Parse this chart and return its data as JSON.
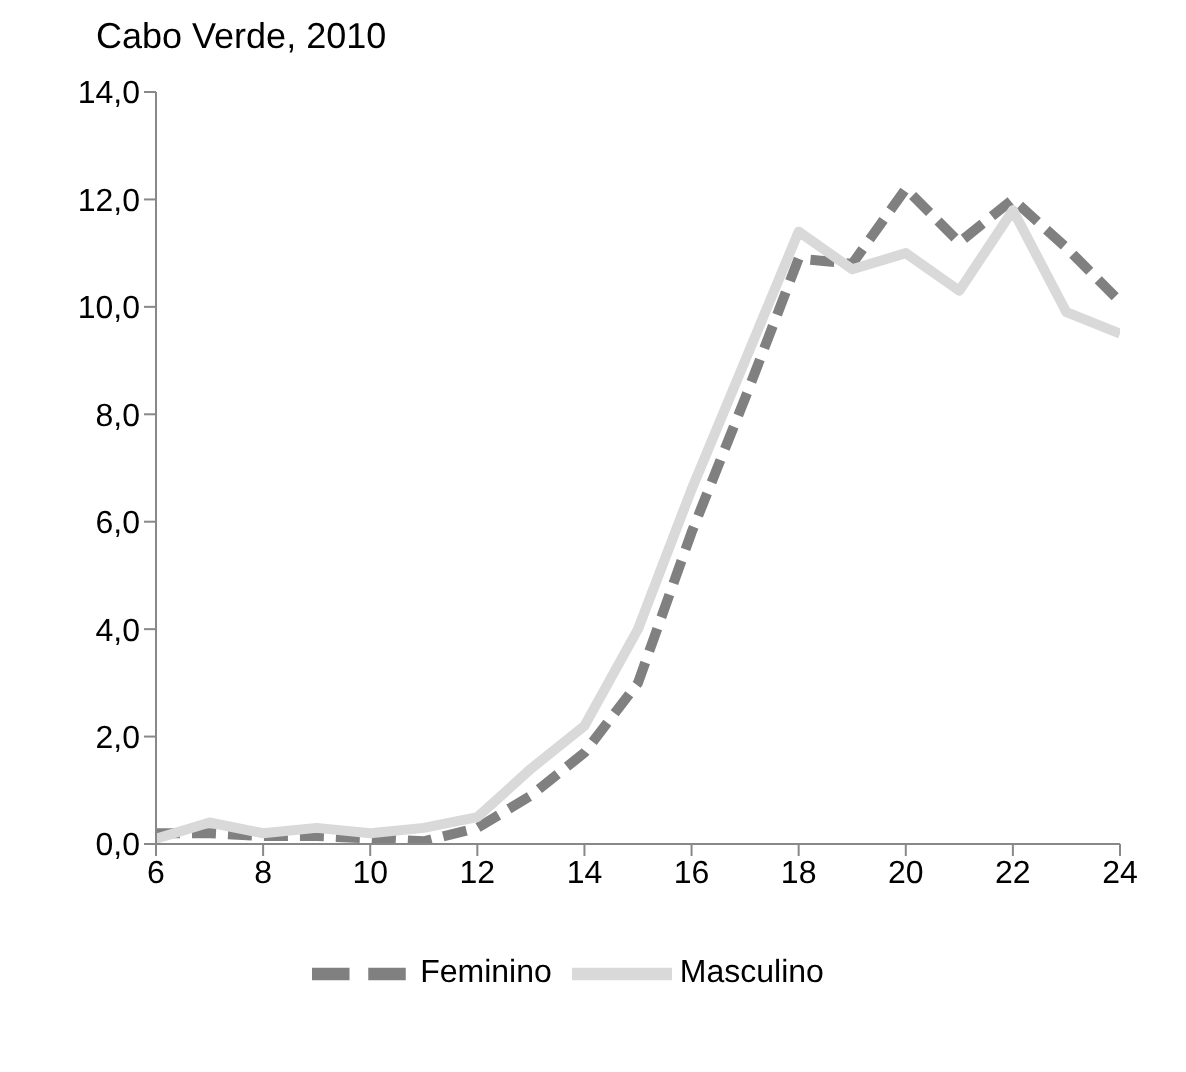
{
  "chart_data": {
    "type": "line",
    "title": "Cabo Verde, 2010",
    "x": [
      6,
      7,
      8,
      9,
      10,
      11,
      12,
      13,
      14,
      15,
      16,
      17,
      18,
      19,
      20,
      21,
      22,
      23,
      24
    ],
    "series": [
      {
        "name": "Feminino",
        "color": "#808080",
        "line_style": "dashed",
        "values": [
          0.2,
          0.2,
          0.15,
          0.15,
          0.1,
          0.05,
          0.3,
          0.9,
          1.7,
          3.0,
          5.8,
          8.3,
          10.9,
          10.8,
          12.2,
          11.2,
          12.0,
          11.1,
          10.1
        ]
      },
      {
        "name": "Masculino",
        "color": "#d9d9d9",
        "line_style": "solid",
        "values": [
          0.1,
          0.4,
          0.2,
          0.3,
          0.2,
          0.3,
          0.5,
          1.4,
          2.2,
          4.0,
          6.6,
          9.0,
          11.4,
          10.7,
          11.0,
          10.3,
          11.8,
          9.9,
          9.5
        ]
      }
    ],
    "xlim": [
      6,
      24
    ],
    "xticks": [
      6,
      8,
      10,
      12,
      14,
      16,
      18,
      20,
      22,
      24
    ],
    "ylim": [
      0,
      14
    ],
    "yticks": [
      {
        "value": 0,
        "label": "0,0"
      },
      {
        "value": 2,
        "label": "2,0"
      },
      {
        "value": 4,
        "label": "4,0"
      },
      {
        "value": 6,
        "label": "6,0"
      },
      {
        "value": 8,
        "label": "8,0"
      },
      {
        "value": 10,
        "label": "10,0"
      },
      {
        "value": 12,
        "label": "12,0"
      },
      {
        "value": 14,
        "label": "14,0"
      }
    ],
    "grid": false,
    "legend": "bottom",
    "marker": "none"
  }
}
